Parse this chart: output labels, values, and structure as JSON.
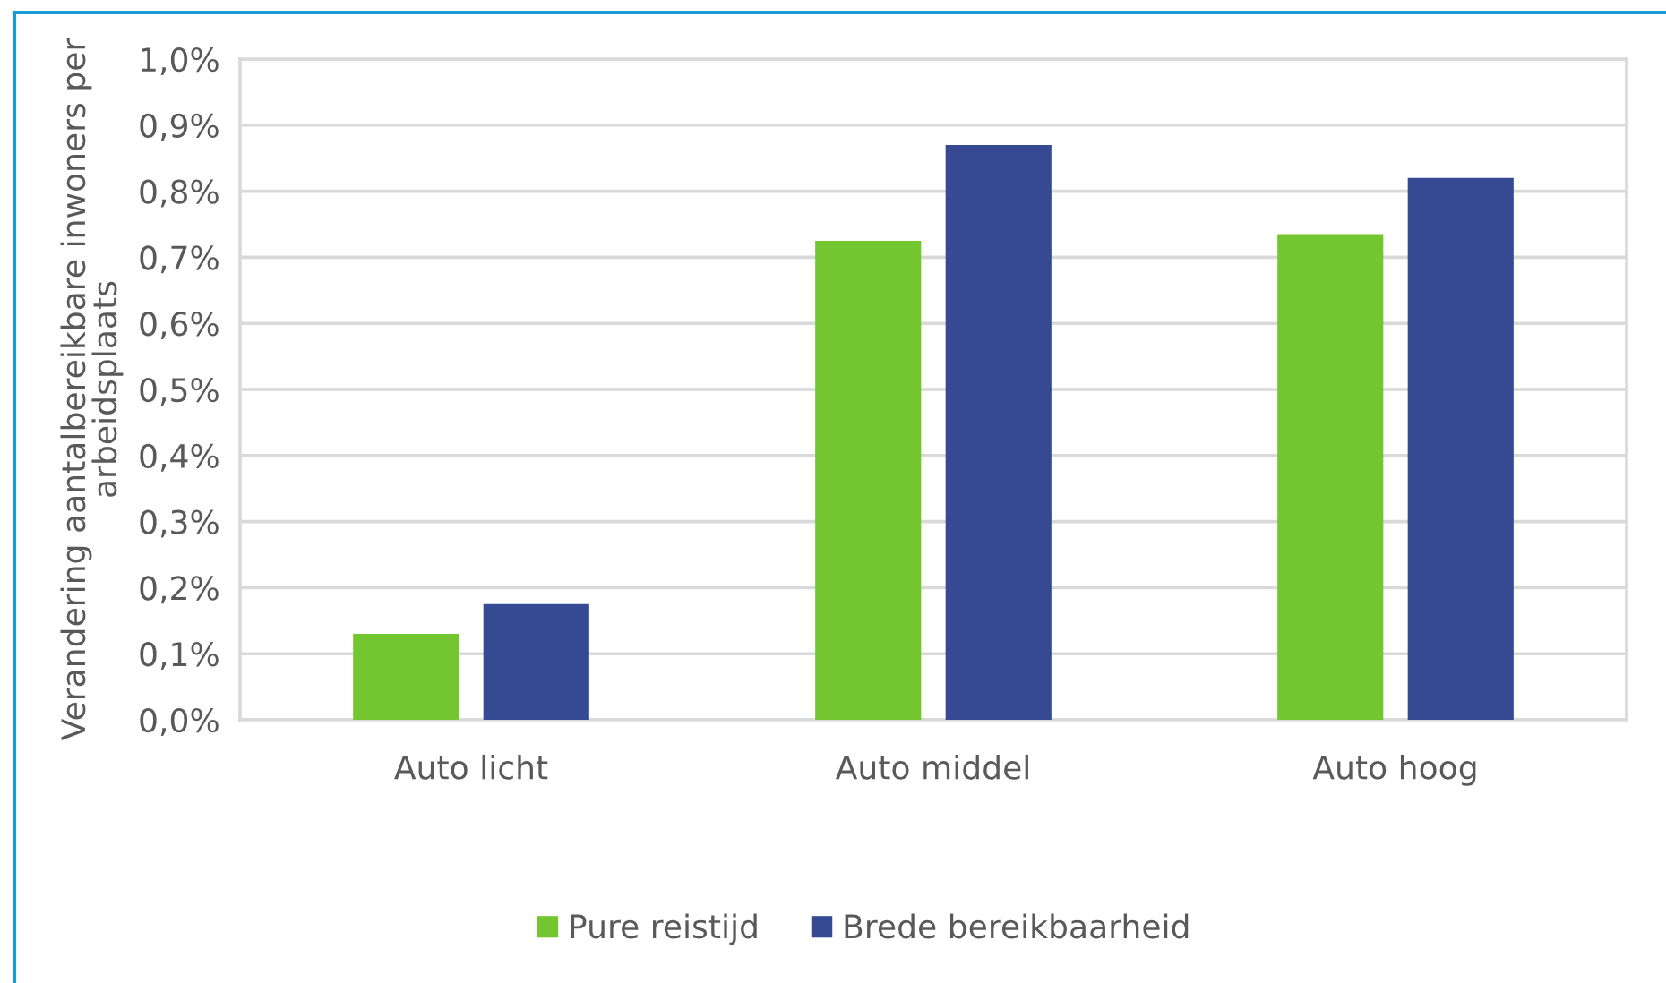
{
  "chart_data": {
    "type": "bar",
    "ylabel": "Verandering aantalbereikbare inwoners per arbeidsplaats",
    "categories": [
      "Auto licht",
      "Auto middel",
      "Auto hoog"
    ],
    "series": [
      {
        "name": "Pure reistijd",
        "color": "#73c62f",
        "values": [
          0.13,
          0.725,
          0.735
        ]
      },
      {
        "name": "Brede bereikbaarheid",
        "color": "#354a93",
        "values": [
          0.175,
          0.87,
          0.82
        ]
      }
    ],
    "ylim": [
      0,
      1.0
    ],
    "yticks": [
      {
        "value": 0,
        "label": "0,0%"
      },
      {
        "value": 0.1,
        "label": "0,1%"
      },
      {
        "value": 0.2,
        "label": "0,2%"
      },
      {
        "value": 0.3,
        "label": "0,3%"
      },
      {
        "value": 0.4,
        "label": "0,4%"
      },
      {
        "value": 0.5,
        "label": "0,5%"
      },
      {
        "value": 0.6,
        "label": "0,6%"
      },
      {
        "value": 0.7,
        "label": "0,7%"
      },
      {
        "value": 0.8,
        "label": "0,8%"
      },
      {
        "value": 0.9,
        "label": "0,9%"
      },
      {
        "value": 1.0,
        "label": "1,0%"
      }
    ],
    "grid": "y",
    "legend": "bottom"
  }
}
